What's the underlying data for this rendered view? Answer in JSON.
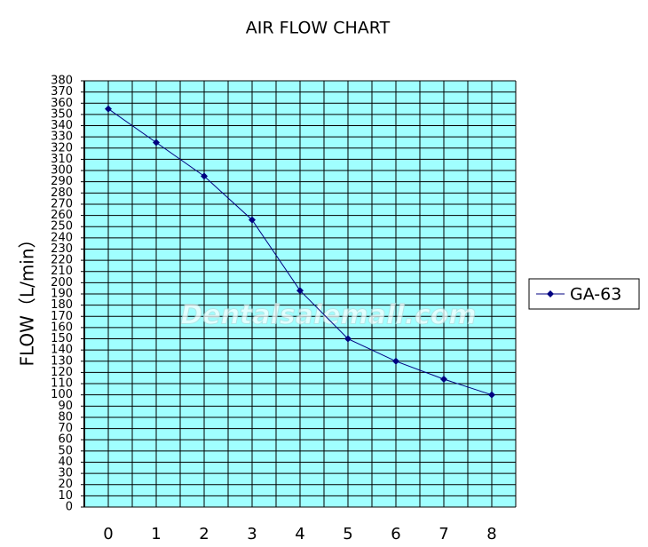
{
  "chart_data": {
    "type": "line",
    "title": "AIR FLOW CHART",
    "y_label": "FLOW（L/min）",
    "watermark": "Dentalsalemall.com",
    "categories": [
      "0",
      "1",
      "2",
      "3",
      "4",
      "5",
      "6",
      "7",
      "8"
    ],
    "series": [
      {
        "name": "GA-63",
        "color": "#000080",
        "values": [
          355,
          325,
          295,
          256,
          193,
          150,
          130,
          114,
          100
        ]
      }
    ],
    "ylim": [
      0,
      380
    ],
    "yticks": [
      0,
      10,
      20,
      30,
      40,
      50,
      60,
      70,
      80,
      90,
      100,
      110,
      120,
      130,
      140,
      150,
      160,
      170,
      180,
      190,
      200,
      210,
      220,
      230,
      240,
      250,
      260,
      270,
      280,
      290,
      300,
      310,
      320,
      330,
      340,
      350,
      360,
      370,
      380
    ],
    "grid": true,
    "background": "#a0ffff",
    "legend": "right"
  }
}
